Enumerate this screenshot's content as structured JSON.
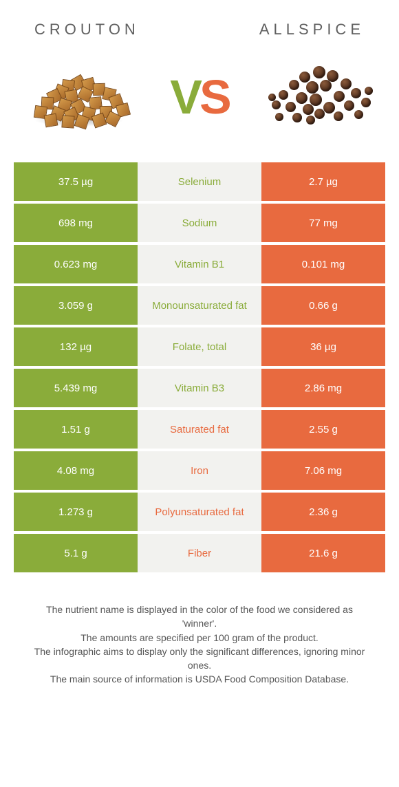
{
  "titles": {
    "left": "CROUTON",
    "right": "ALLSPICE"
  },
  "vs": {
    "v": "V",
    "s": "S"
  },
  "colors": {
    "left": "#8aac3a",
    "right": "#e86a3f",
    "mid_bg": "#f2f2ef",
    "text": "#4a4a4a"
  },
  "rows": [
    {
      "left": "37.5 µg",
      "label": "Selenium",
      "right": "2.7 µg",
      "winner": "left"
    },
    {
      "left": "698 mg",
      "label": "Sodium",
      "right": "77 mg",
      "winner": "left"
    },
    {
      "left": "0.623 mg",
      "label": "Vitamin B1",
      "right": "0.101 mg",
      "winner": "left"
    },
    {
      "left": "3.059 g",
      "label": "Monounsaturated fat",
      "right": "0.66 g",
      "winner": "left"
    },
    {
      "left": "132 µg",
      "label": "Folate, total",
      "right": "36 µg",
      "winner": "left"
    },
    {
      "left": "5.439 mg",
      "label": "Vitamin B3",
      "right": "2.86 mg",
      "winner": "left"
    },
    {
      "left": "1.51 g",
      "label": "Saturated fat",
      "right": "2.55 g",
      "winner": "right"
    },
    {
      "left": "4.08 mg",
      "label": "Iron",
      "right": "7.06 mg",
      "winner": "right"
    },
    {
      "left": "1.273 g",
      "label": "Polyunsaturated fat",
      "right": "2.36 g",
      "winner": "right"
    },
    {
      "left": "5.1 g",
      "label": "Fiber",
      "right": "21.6 g",
      "winner": "right"
    }
  ],
  "footer": [
    "The nutrient name is displayed in the color of the food we considered as 'winner'.",
    "The amounts are specified per 100 gram of the product.",
    "The infographic aims to display only the significant differences, ignoring minor ones.",
    "The main source of information is USDA Food Composition Database."
  ]
}
